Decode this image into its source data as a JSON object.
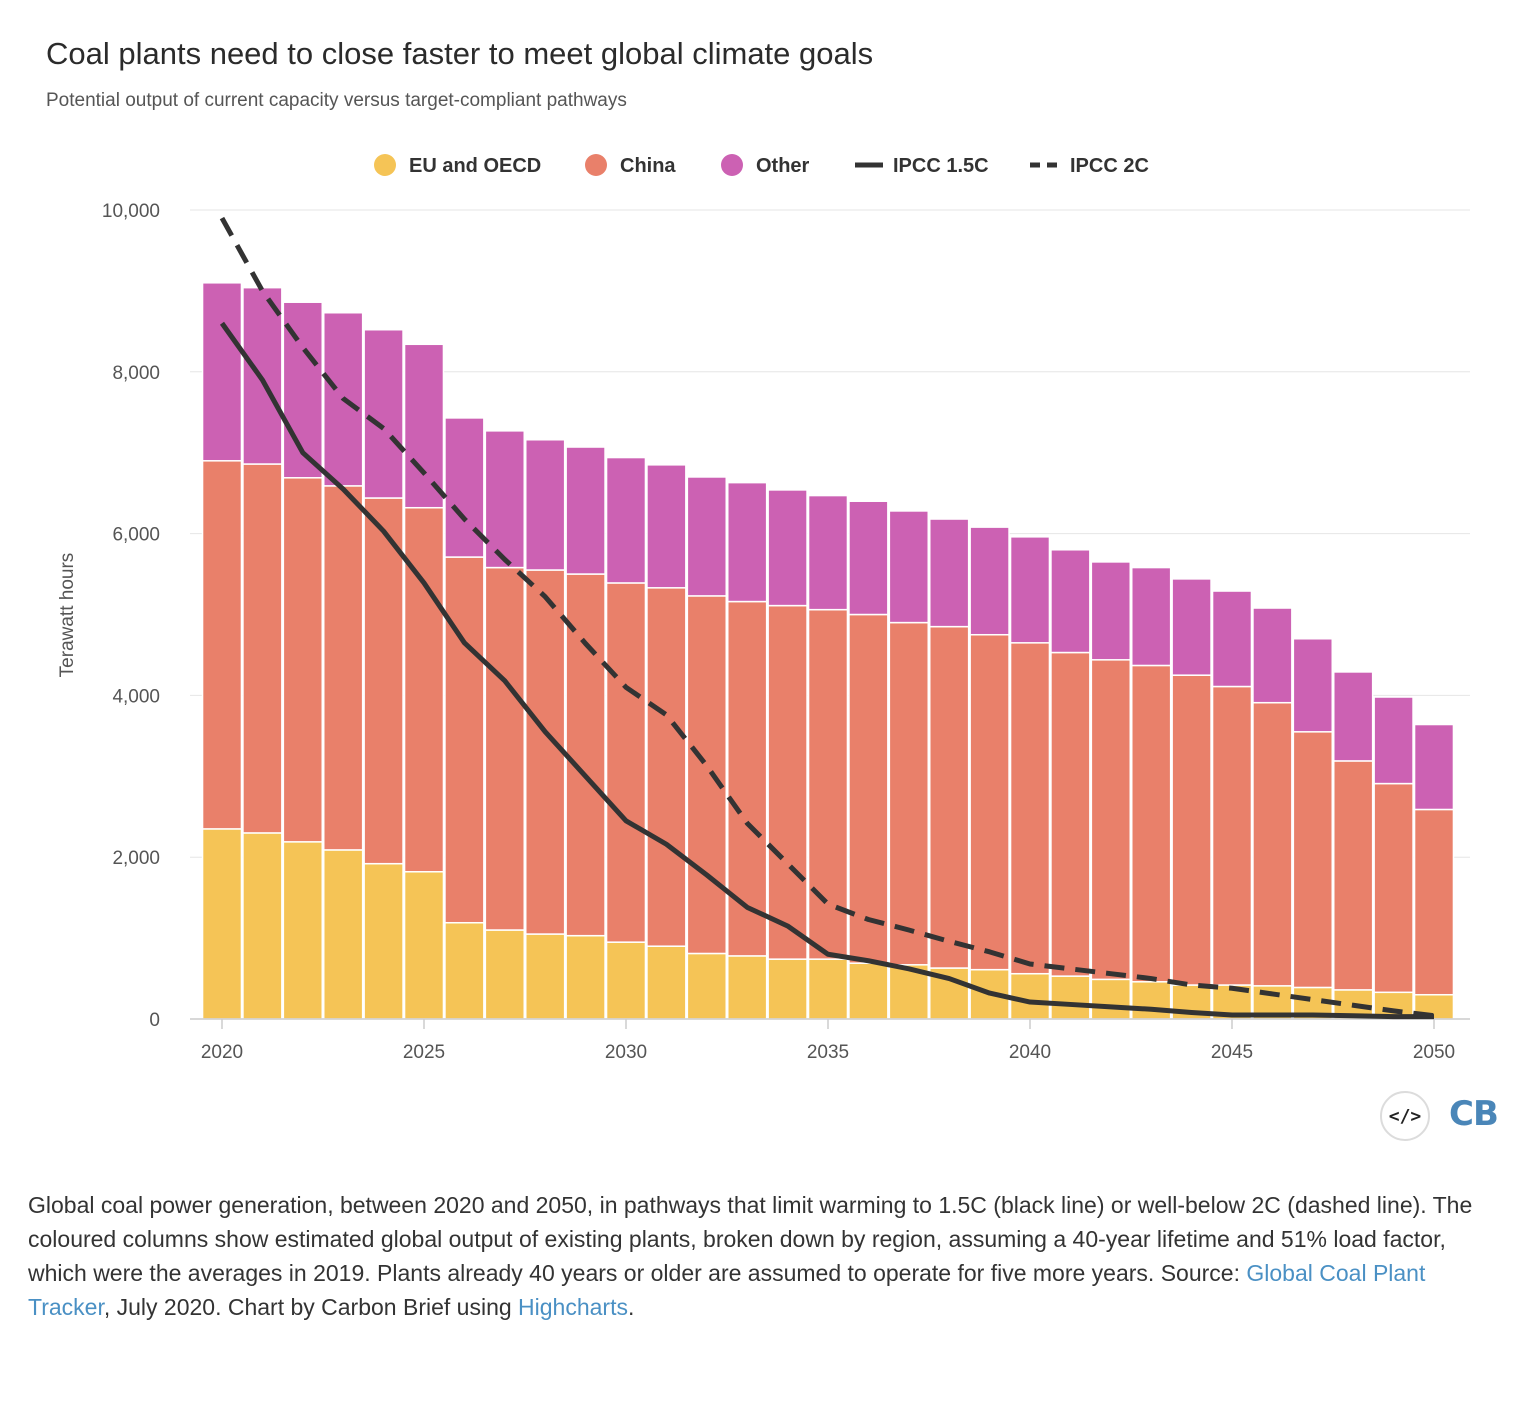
{
  "title": "Coal plants need to close faster to meet global climate goals",
  "subtitle": "Potential output of current capacity versus target-compliant pathways",
  "embed_icon": "</>",
  "brand": "CB",
  "caption": {
    "text_1": "Global coal power generation, between 2020 and 2050, in pathways that limit warming to 1.5C (black line) or well-below 2C (dashed line). The coloured columns show estimated global output of existing plants, broken down by region, assuming a 40-year lifetime and 51% load factor, which were the averages in 2019. Plants already 40 years or older are assumed to operate for five more years. Source: ",
    "link_1": "Global Coal Plant Tracker",
    "text_2": ", July 2020. Chart by Carbon Brief using ",
    "link_2": "Highcharts",
    "text_3": "."
  },
  "chart_data": {
    "type": "bar",
    "stacked": true,
    "ylabel": "Terawatt hours",
    "ylim": [
      0,
      10000
    ],
    "y_ticks": [
      0,
      2000,
      4000,
      6000,
      8000,
      10000
    ],
    "y_tick_labels": [
      "0",
      "2,000",
      "4,000",
      "6,000",
      "8,000",
      "10,000"
    ],
    "x_ticks": [
      2020,
      2025,
      2030,
      2035,
      2040,
      2045,
      2050
    ],
    "x_tick_labels": [
      "2020",
      "2025",
      "2030",
      "2035",
      "2040",
      "2045",
      "2050"
    ],
    "grid": true,
    "legend_position": "top-center",
    "categories": [
      2020,
      2021,
      2022,
      2023,
      2024,
      2025,
      2026,
      2027,
      2028,
      2029,
      2030,
      2031,
      2032,
      2033,
      2034,
      2035,
      2036,
      2037,
      2038,
      2039,
      2040,
      2041,
      2042,
      2043,
      2044,
      2045,
      2046,
      2047,
      2048,
      2049,
      2050
    ],
    "series": [
      {
        "name": "EU and OECD",
        "color": "#f5c456",
        "values": [
          2350,
          2300,
          2190,
          2090,
          1920,
          1820,
          1190,
          1100,
          1050,
          1030,
          950,
          900,
          810,
          780,
          740,
          740,
          690,
          670,
          630,
          610,
          560,
          530,
          490,
          460,
          420,
          420,
          410,
          390,
          360,
          330,
          300
        ]
      },
      {
        "name": "China",
        "color": "#e9806a",
        "values": [
          4550,
          4560,
          4500,
          4500,
          4520,
          4500,
          4520,
          4480,
          4500,
          4470,
          4440,
          4430,
          4420,
          4380,
          4370,
          4320,
          4310,
          4230,
          4220,
          4140,
          4090,
          4000,
          3950,
          3910,
          3830,
          3690,
          3500,
          3160,
          2830,
          2580,
          2290
        ]
      },
      {
        "name": "Other",
        "color": "#cc61b3",
        "values": [
          2200,
          2180,
          2170,
          2140,
          2080,
          2020,
          1720,
          1690,
          1610,
          1570,
          1550,
          1520,
          1470,
          1470,
          1430,
          1410,
          1400,
          1380,
          1330,
          1330,
          1310,
          1270,
          1210,
          1210,
          1190,
          1180,
          1170,
          1150,
          1100,
          1070,
          1050
        ]
      }
    ],
    "lines": [
      {
        "name": "IPCC 1.5C",
        "color": "#333333",
        "style": "solid",
        "x": [
          2020,
          2021,
          2022,
          2023,
          2024,
          2025,
          2026,
          2027,
          2028,
          2029,
          2030,
          2031,
          2032,
          2033,
          2034,
          2035,
          2036,
          2037,
          2038,
          2039,
          2040,
          2041,
          2042,
          2043,
          2044,
          2045,
          2046,
          2047,
          2048,
          2049,
          2050
        ],
        "y": [
          8600,
          7900,
          7000,
          6550,
          6030,
          5390,
          4650,
          4180,
          3550,
          3000,
          2450,
          2160,
          1780,
          1380,
          1150,
          800,
          720,
          620,
          500,
          320,
          210,
          180,
          150,
          120,
          80,
          50,
          50,
          50,
          40,
          30,
          30
        ]
      },
      {
        "name": "IPCC 2C",
        "color": "#333333",
        "style": "dashed",
        "x": [
          2020,
          2021,
          2022,
          2023,
          2024,
          2025,
          2026,
          2027,
          2028,
          2029,
          2030,
          2031,
          2032,
          2033,
          2034,
          2035,
          2036,
          2037,
          2038,
          2039,
          2040,
          2041,
          2042,
          2043,
          2044,
          2045,
          2046,
          2047,
          2048,
          2049,
          2050
        ],
        "y": [
          9900,
          9000,
          8300,
          7670,
          7300,
          6750,
          6180,
          5680,
          5220,
          4640,
          4100,
          3760,
          3130,
          2420,
          1920,
          1420,
          1230,
          1100,
          960,
          830,
          680,
          620,
          560,
          500,
          420,
          380,
          310,
          240,
          170,
          100,
          40
        ]
      }
    ]
  }
}
